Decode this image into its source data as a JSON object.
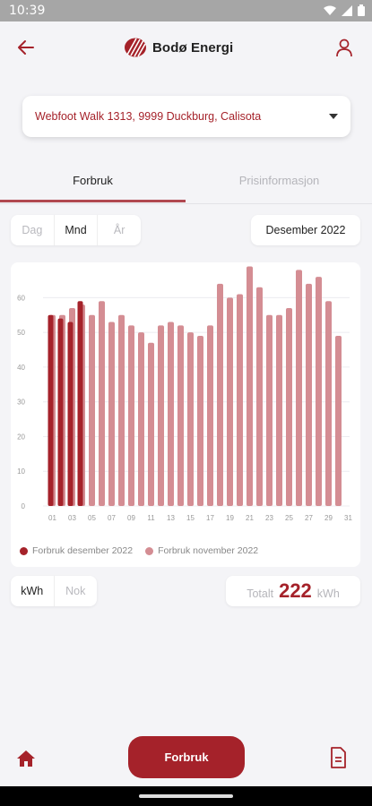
{
  "status_bar": {
    "time": "10:39"
  },
  "header": {
    "brand": "Bodø Energi",
    "back_icon": "arrow-left-icon",
    "profile_icon": "person-icon"
  },
  "address": {
    "value": "Webfoot Walk 1313, 9999 Duckburg, Calisota"
  },
  "tabs": [
    {
      "label": "Forbruk",
      "active": true
    },
    {
      "label": "Prisinformasjon",
      "active": false
    }
  ],
  "period": {
    "options": [
      "Dag",
      "Mnd",
      "År"
    ],
    "selected": "Mnd"
  },
  "month": {
    "label": "Desember 2022"
  },
  "chart_data": {
    "type": "bar",
    "ylim": [
      0,
      65
    ],
    "y_ticks": [
      "0",
      "10",
      "20",
      "30",
      "40",
      "50",
      "60"
    ],
    "x_ticks": [
      "01",
      "03",
      "05",
      "07",
      "09",
      "11",
      "13",
      "15",
      "17",
      "19",
      "21",
      "23",
      "25",
      "27",
      "29",
      "31"
    ],
    "grid": true,
    "series": [
      {
        "name": "Forbruk desember 2022",
        "color": "#a5222a",
        "days": [
          1,
          2,
          3,
          4
        ],
        "values": [
          55,
          54,
          53,
          59
        ]
      },
      {
        "name": "Forbruk november 2022",
        "color": "#d48d93",
        "days": [
          1,
          2,
          3,
          4,
          5,
          6,
          7,
          8,
          9,
          10,
          11,
          12,
          13,
          14,
          15,
          16,
          17,
          18,
          19,
          20,
          21,
          22,
          23,
          24,
          25,
          26,
          27,
          28,
          29,
          30
        ],
        "values": [
          55,
          55,
          57,
          58,
          55,
          59,
          53,
          55,
          52,
          50,
          47,
          52,
          53,
          52,
          50,
          49,
          52,
          64,
          60,
          61,
          69,
          63,
          55,
          55,
          57,
          68,
          64,
          66,
          59,
          49
        ]
      }
    ],
    "legend_position": "bottom"
  },
  "unit_toggle": {
    "options": [
      "kWh",
      "Nok"
    ],
    "selected": "kWh"
  },
  "total": {
    "label": "Totalt",
    "value": "222",
    "unit": "kWh"
  },
  "bottom_nav": {
    "center_label": "Forbruk",
    "home_icon": "home-icon",
    "doc_icon": "document-icon"
  },
  "colors": {
    "brand": "#a5222a",
    "november": "#d48d93"
  }
}
